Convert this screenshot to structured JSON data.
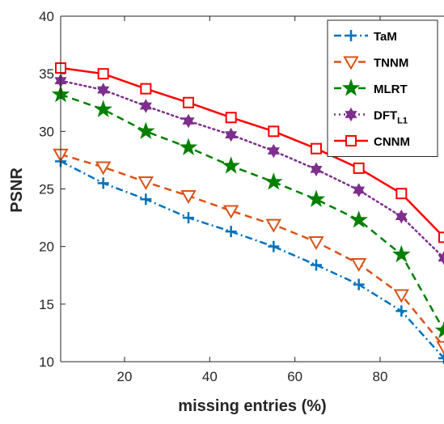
{
  "chart_data": {
    "type": "line",
    "title": "",
    "xlabel": "missing entries (%)",
    "ylabel": "PSNR",
    "xlim": [
      5,
      95
    ],
    "ylim": [
      10,
      40
    ],
    "xticks": [
      20,
      40,
      60,
      80
    ],
    "yticks": [
      10,
      15,
      20,
      25,
      30,
      35,
      40
    ],
    "grid": false,
    "legend_position": "top-right",
    "x": [
      5,
      15,
      25,
      35,
      45,
      55,
      65,
      75,
      85,
      95
    ],
    "series": [
      {
        "name": "TaM",
        "color": "#0072BD",
        "line_style": "dash-dot",
        "marker": "plus",
        "values": [
          27.4,
          25.5,
          24.1,
          22.5,
          21.3,
          20.0,
          18.4,
          16.7,
          14.4,
          10.3
        ]
      },
      {
        "name": "TNNM",
        "color": "#D95319",
        "line_style": "dashed",
        "marker": "triangle-down",
        "values": [
          28.0,
          26.9,
          25.6,
          24.4,
          23.1,
          21.9,
          20.4,
          18.5,
          15.8,
          11.3
        ]
      },
      {
        "name": "MLRT",
        "color": "#008000",
        "line_style": "dashed",
        "marker": "pentagram",
        "values": [
          33.2,
          31.9,
          30.0,
          28.6,
          27.0,
          25.6,
          24.1,
          22.3,
          19.3,
          12.7
        ]
      },
      {
        "name": "DFT",
        "name_subscript": "L1",
        "color": "#7E2F8E",
        "line_style": "dotted",
        "marker": "hexagram",
        "values": [
          34.4,
          33.6,
          32.2,
          30.9,
          29.7,
          28.3,
          26.7,
          24.9,
          22.6,
          19.0
        ]
      },
      {
        "name": "CNNM",
        "color": "#FF0000",
        "line_style": "solid",
        "marker": "square",
        "values": [
          35.5,
          35.0,
          33.7,
          32.5,
          31.2,
          30.0,
          28.5,
          26.8,
          24.6,
          20.8
        ]
      }
    ]
  }
}
